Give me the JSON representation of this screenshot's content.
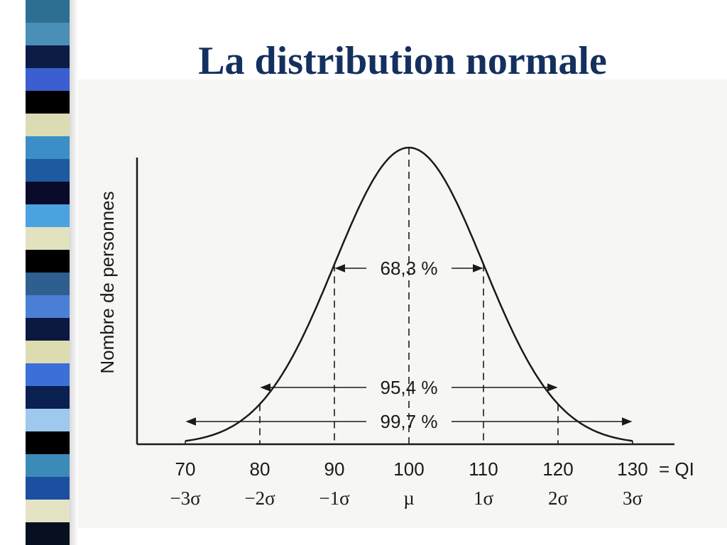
{
  "slide": {
    "title": "La distribution normale",
    "stripe_colors": [
      "#2d6f93",
      "#4a8fb5",
      "#0c1c46",
      "#3b5fd1",
      "#000000",
      "#dcdcb4",
      "#3b8fc6",
      "#1e5aa0",
      "#0a0a2a",
      "#4aa3e0",
      "#e2e2c0",
      "#000000",
      "#2e5f8e",
      "#4b7fd6",
      "#0b1840",
      "#dcdcb0",
      "#3c6fd8",
      "#0a2050",
      "#9ec8ee",
      "#000000",
      "#3c8ab8",
      "#1c4fa0",
      "#e4e4c4",
      "#07101f"
    ]
  },
  "chart_data": {
    "type": "line",
    "ylabel": "Nombre de personnes",
    "x_unit_label": "= QI",
    "x_ticks": [
      {
        "value": 70,
        "label": "70",
        "sigma": "−3σ"
      },
      {
        "value": 80,
        "label": "80",
        "sigma": "−2σ"
      },
      {
        "value": 90,
        "label": "90",
        "sigma": "−1σ"
      },
      {
        "value": 100,
        "label": "100",
        "sigma": "µ"
      },
      {
        "value": 110,
        "label": "110",
        "sigma": "1σ"
      },
      {
        "value": 120,
        "label": "120",
        "sigma": "2σ"
      },
      {
        "value": 130,
        "label": "130",
        "sigma": "3σ"
      }
    ],
    "distribution": {
      "mean": 100,
      "sd": 10,
      "x_range": [
        70,
        130
      ]
    },
    "ranges": [
      {
        "label": "68,3 %",
        "from": 90,
        "to": 110
      },
      {
        "label": "95,4 %",
        "from": 80,
        "to": 120
      },
      {
        "label": "99,7 %",
        "from": 70,
        "to": 130
      }
    ],
    "grid": false,
    "legend": "none"
  }
}
